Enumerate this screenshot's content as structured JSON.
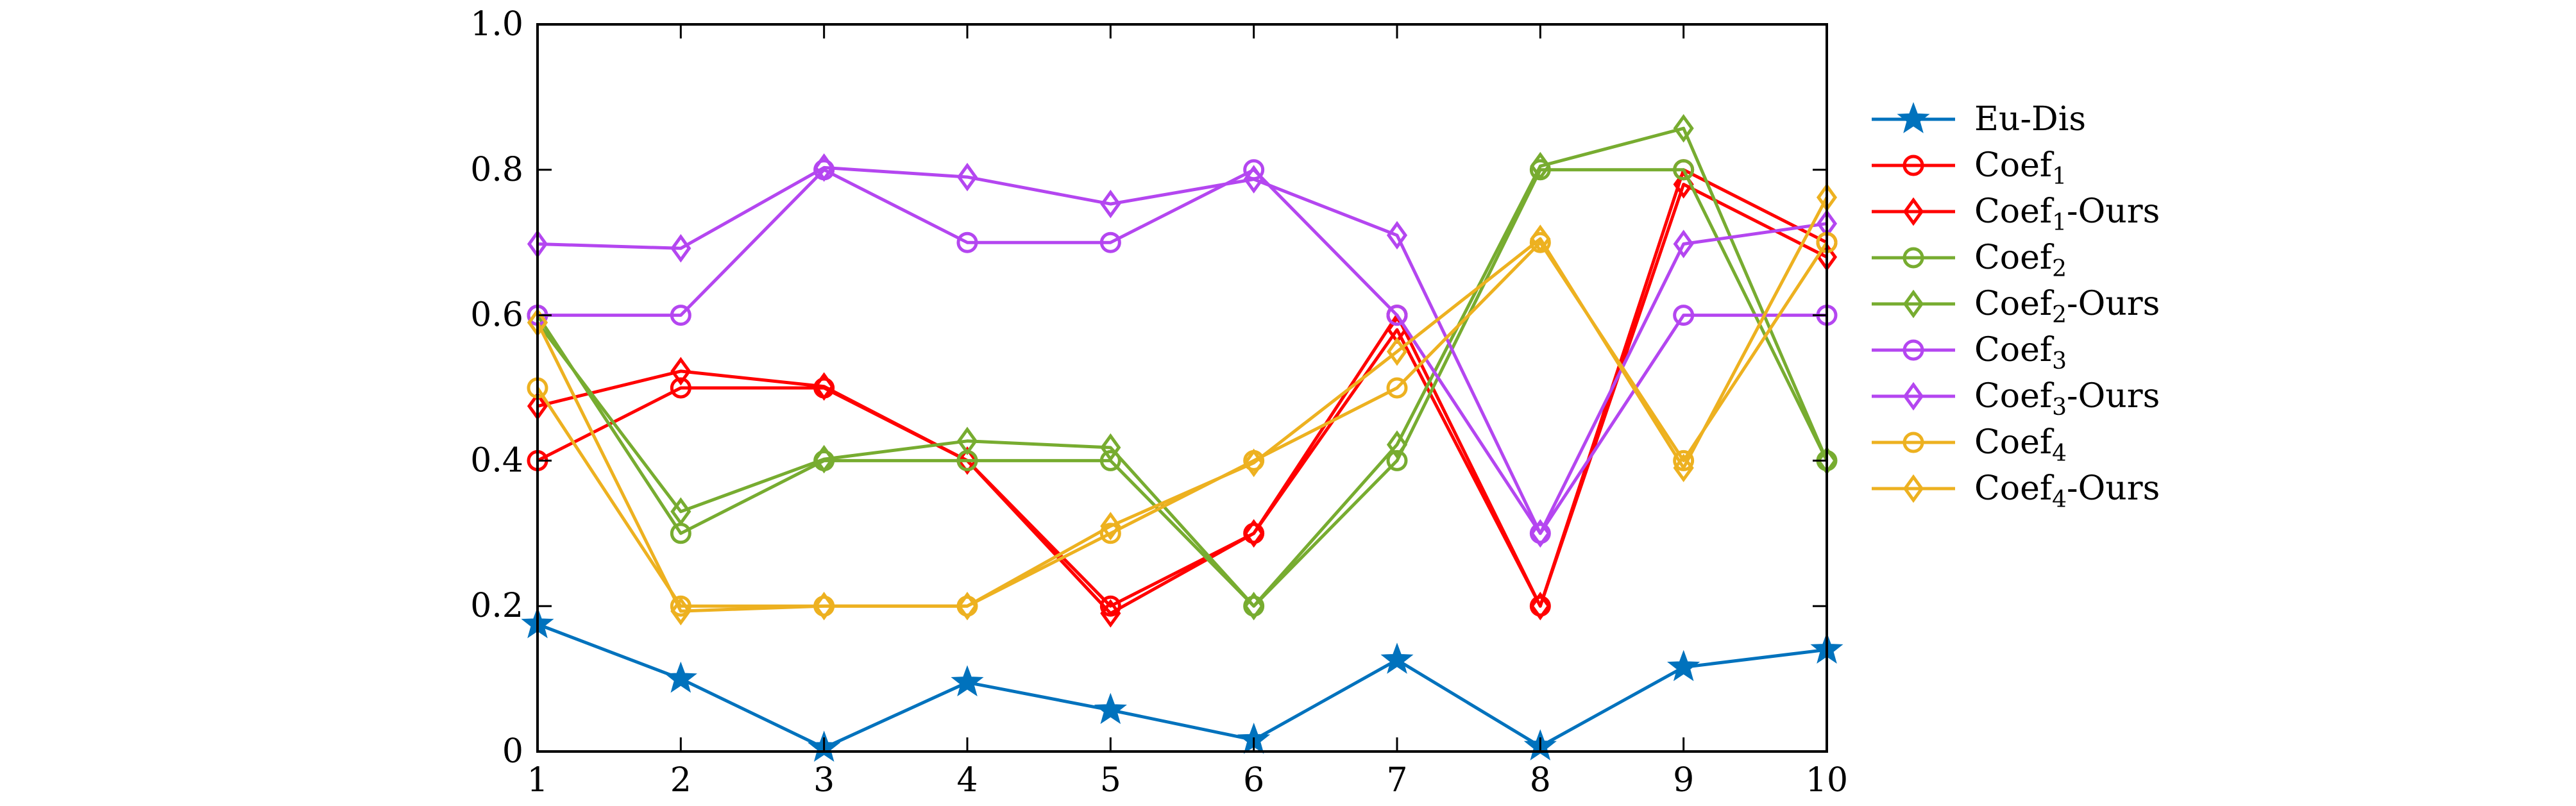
{
  "chart_data": {
    "type": "line",
    "title": "",
    "xlabel": "",
    "ylabel": "",
    "xlim": [
      1,
      10
    ],
    "ylim": [
      0,
      1
    ],
    "grid": false,
    "legend_position": "right",
    "x": [
      1,
      2,
      3,
      4,
      5,
      6,
      7,
      8,
      9,
      10
    ],
    "x_ticks": [
      "1",
      "2",
      "3",
      "4",
      "5",
      "6",
      "7",
      "8",
      "9",
      "10"
    ],
    "y_ticks": [
      "0",
      "0.2",
      "0.4",
      "0.6",
      "0.8",
      "1.0"
    ],
    "y_tick_values": [
      0,
      0.2,
      0.4,
      0.6,
      0.8,
      1.0
    ],
    "series": [
      {
        "name": "Eu-Dis",
        "base": "Eu-Dis",
        "sub": "",
        "suffix": "",
        "color": "#0072BD",
        "marker": "star",
        "values": [
          0.175,
          0.1,
          0.005,
          0.095,
          0.057,
          0.016,
          0.126,
          0.007,
          0.116,
          0.14
        ]
      },
      {
        "name": "Coef1",
        "base": "Coef",
        "sub": "1",
        "suffix": "",
        "color": "#FF0000",
        "marker": "circle",
        "values": [
          0.4,
          0.5,
          0.5,
          0.4,
          0.2,
          0.3,
          0.6,
          0.2,
          0.8,
          0.7
        ]
      },
      {
        "name": "Coef1-Ours",
        "base": "Coef",
        "sub": "1",
        "suffix": "-Ours",
        "color": "#FF0000",
        "marker": "diamond",
        "values": [
          0.475,
          0.523,
          0.502,
          0.4,
          0.19,
          0.3,
          0.58,
          0.2,
          0.78,
          0.68
        ]
      },
      {
        "name": "Coef2",
        "base": "Coef",
        "sub": "2",
        "suffix": "",
        "color": "#77AC30",
        "marker": "circle",
        "values": [
          0.6,
          0.3,
          0.4,
          0.4,
          0.4,
          0.2,
          0.4,
          0.8,
          0.8,
          0.4
        ]
      },
      {
        "name": "Coef2-Ours",
        "base": "Coef",
        "sub": "2",
        "suffix": "-Ours",
        "color": "#77AC30",
        "marker": "diamond",
        "values": [
          0.59,
          0.33,
          0.402,
          0.427,
          0.418,
          0.2,
          0.422,
          0.805,
          0.857,
          0.4
        ]
      },
      {
        "name": "Coef3",
        "base": "Coef",
        "sub": "3",
        "suffix": "",
        "color": "#B446F0",
        "marker": "circle",
        "values": [
          0.6,
          0.6,
          0.8,
          0.7,
          0.7,
          0.8,
          0.6,
          0.3,
          0.6,
          0.6
        ]
      },
      {
        "name": "Coef3-Ours",
        "base": "Coef",
        "sub": "3",
        "suffix": "-Ours",
        "color": "#B446F0",
        "marker": "diamond",
        "values": [
          0.698,
          0.692,
          0.803,
          0.79,
          0.753,
          0.787,
          0.71,
          0.3,
          0.698,
          0.726
        ]
      },
      {
        "name": "Coef4",
        "base": "Coef",
        "sub": "4",
        "suffix": "",
        "color": "#EDB120",
        "marker": "circle",
        "values": [
          0.5,
          0.2,
          0.2,
          0.2,
          0.3,
          0.4,
          0.5,
          0.7,
          0.4,
          0.7
        ]
      },
      {
        "name": "Coef4-Ours",
        "base": "Coef",
        "sub": "4",
        "suffix": "-Ours",
        "color": "#EDB120",
        "marker": "diamond",
        "values": [
          0.59,
          0.193,
          0.2,
          0.2,
          0.31,
          0.397,
          0.55,
          0.705,
          0.39,
          0.762
        ]
      }
    ]
  }
}
